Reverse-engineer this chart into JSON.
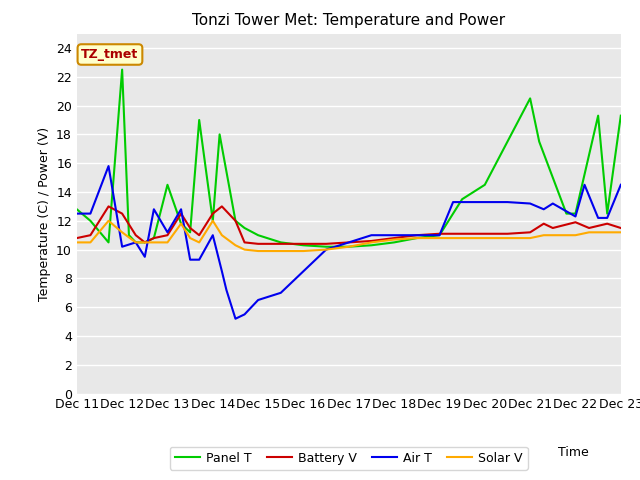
{
  "title": "Tonzi Tower Met: Temperature and Power",
  "xlabel": "Time",
  "ylabel": "Temperature (C) / Power (V)",
  "annotation": "TZ_tmet",
  "ylim": [
    0,
    25
  ],
  "yticks": [
    0,
    2,
    4,
    6,
    8,
    10,
    12,
    14,
    16,
    18,
    20,
    22,
    24
  ],
  "x_labels": [
    "Dec 11",
    "Dec 12",
    "Dec 13",
    "Dec 14",
    "Dec 15",
    "Dec 16",
    "Dec 17",
    "Dec 18",
    "Dec 19",
    "Dec 20",
    "Dec 21",
    "Dec 22",
    "Dec 23"
  ],
  "panel_T": {
    "label": "Panel T",
    "color": "#00cc00",
    "x": [
      11,
      11.3,
      11.7,
      12.0,
      12.15,
      12.3,
      12.5,
      12.7,
      13.0,
      13.3,
      13.5,
      13.7,
      14.0,
      14.15,
      14.5,
      14.7,
      15.0,
      15.5,
      16.0,
      16.5,
      17.0,
      17.5,
      18.0,
      18.5,
      19.0,
      19.5,
      20.0,
      20.5,
      21.0,
      21.2,
      21.8,
      22.0,
      22.5,
      22.7,
      23.0
    ],
    "y": [
      12.8,
      12.0,
      10.5,
      22.5,
      11.0,
      10.5,
      10.5,
      10.8,
      14.5,
      11.8,
      11.2,
      19.0,
      12.0,
      18.0,
      12.0,
      11.5,
      11.0,
      10.5,
      10.3,
      10.2,
      10.2,
      10.3,
      10.5,
      10.8,
      11.0,
      13.5,
      14.5,
      17.5,
      20.5,
      17.5,
      12.5,
      12.5,
      19.3,
      12.5,
      19.3
    ]
  },
  "battery_V": {
    "label": "Battery V",
    "color": "#cc0000",
    "x": [
      11,
      11.3,
      11.7,
      12.0,
      12.3,
      12.5,
      12.7,
      13.0,
      13.3,
      13.5,
      13.7,
      14.0,
      14.2,
      14.5,
      14.7,
      15.0,
      15.5,
      16.0,
      16.5,
      17.0,
      17.5,
      18.0,
      18.5,
      19.0,
      19.5,
      20.0,
      20.5,
      21.0,
      21.3,
      21.5,
      22.0,
      22.3,
      22.7,
      23.0
    ],
    "y": [
      10.8,
      11.0,
      13.0,
      12.5,
      11.0,
      10.5,
      10.8,
      11.0,
      12.5,
      11.5,
      11.0,
      12.5,
      13.0,
      12.0,
      10.5,
      10.4,
      10.4,
      10.4,
      10.4,
      10.5,
      10.6,
      10.8,
      11.0,
      11.1,
      11.1,
      11.1,
      11.1,
      11.2,
      11.8,
      11.5,
      11.9,
      11.5,
      11.8,
      11.5
    ]
  },
  "air_T": {
    "label": "Air T",
    "color": "#0000ee",
    "x": [
      11,
      11.3,
      11.7,
      12.0,
      12.3,
      12.5,
      12.7,
      13.0,
      13.3,
      13.5,
      13.7,
      14.0,
      14.2,
      14.3,
      14.5,
      14.7,
      15.0,
      15.3,
      15.5,
      16.0,
      16.5,
      17.0,
      17.5,
      18.0,
      18.5,
      19.0,
      19.3,
      19.7,
      20.0,
      20.5,
      21.0,
      21.3,
      21.5,
      22.0,
      22.2,
      22.5,
      22.7,
      23.0
    ],
    "y": [
      12.5,
      12.5,
      15.8,
      10.2,
      10.5,
      9.5,
      12.8,
      11.2,
      12.8,
      9.3,
      9.3,
      11.0,
      8.5,
      7.2,
      5.2,
      5.5,
      6.5,
      6.8,
      7.0,
      8.5,
      10.0,
      10.5,
      11.0,
      11.0,
      11.0,
      11.0,
      13.3,
      13.3,
      13.3,
      13.3,
      13.2,
      12.8,
      13.2,
      12.3,
      14.5,
      12.2,
      12.2,
      14.5
    ]
  },
  "solar_V": {
    "label": "Solar V",
    "color": "#ffaa00",
    "x": [
      11,
      11.3,
      11.7,
      12.0,
      12.3,
      12.5,
      12.7,
      13.0,
      13.3,
      13.5,
      13.7,
      14.0,
      14.2,
      14.5,
      14.7,
      15.0,
      15.5,
      16.0,
      16.5,
      17.0,
      17.5,
      18.0,
      18.5,
      19.0,
      19.5,
      20.0,
      20.5,
      21.0,
      21.3,
      21.5,
      22.0,
      22.3,
      22.7,
      23.0
    ],
    "y": [
      10.5,
      10.5,
      12.0,
      11.2,
      10.5,
      10.5,
      10.5,
      10.5,
      11.8,
      10.8,
      10.5,
      12.0,
      11.0,
      10.3,
      10.0,
      9.9,
      9.9,
      9.9,
      10.0,
      10.2,
      10.5,
      10.7,
      10.8,
      10.8,
      10.8,
      10.8,
      10.8,
      10.8,
      11.0,
      11.0,
      11.0,
      11.2,
      11.2,
      11.2
    ]
  },
  "fig_bg": "#ffffff",
  "plot_bg": "#e8e8e8",
  "grid_color": "#ffffff",
  "legend_bg": "#ffffff",
  "annotation_bg": "#ffffcc",
  "annotation_border": "#cc8800",
  "annotation_text_color": "#aa0000",
  "title_fontsize": 11,
  "axis_label_fontsize": 9,
  "tick_fontsize": 9
}
